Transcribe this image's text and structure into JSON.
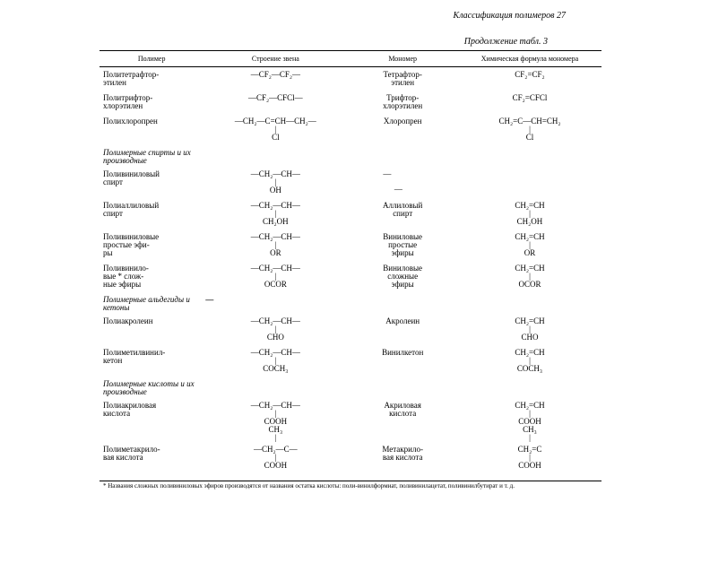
{
  "header": "Классификация полимеров  27",
  "continuation": "Продолжение табл. 3",
  "columns": {
    "polymer": "Полимер",
    "chain": "Строение звена",
    "monomer": "Мономер",
    "formula": "Химическая формула мономера"
  },
  "groups": {
    "alcohols": "Полимерные спирты и их производные",
    "aldehydes": "Полимерные альдегиды и кетоны",
    "acids": "Полимерные кислоты и их производные"
  },
  "rows": {
    "ptfe": {
      "polymer": "Политетрафтор-\nэтилен",
      "chain": "—CF₂—CF₂—",
      "monomer": "Тетрафтор-\nэтилен",
      "formula": "CF₂=CF₂"
    },
    "ptfce": {
      "polymer": "Политрифтор-\nхлорэтилен",
      "chain": "—CF₂—CFCl—",
      "monomer": "Трифтор-\nхлорэтилен",
      "formula": "CF₂=CFCl"
    },
    "pcp": {
      "polymer": "Полихлоропрен",
      "chain_top": "—CH₂—C=CH—CH₂—",
      "chain_mid": "|",
      "chain_bot": "Cl",
      "monomer": "Хлоропрен",
      "formula_top": "CH₂=C—CH=CH₂",
      "formula_mid": "|",
      "formula_bot": "Cl"
    },
    "pva_hidden": {
      "polymer": "Поливиниловый\nспирт",
      "chain_top": "—CH₂—CH—",
      "chain_mid": "|",
      "chain_bot": "OH",
      "monomer": "—",
      "formula": "—"
    },
    "pallyl": {
      "polymer": "Полиаллиловый\nспирт",
      "chain_top": "—CH₂—CH—",
      "chain_mid": "|",
      "chain_bot": "CH₂OH",
      "monomer": "Аллиловый\nспирт",
      "formula_top": "CH₂=CH",
      "formula_mid": "|",
      "formula_bot": "CH₂OH"
    },
    "pveth": {
      "polymer": "Поливиниловые\nпростые эфи-\nры",
      "chain_top": "—CH₂—CH—",
      "chain_mid": "|",
      "chain_bot": "OR",
      "monomer": "Виниловые\nпростые\nэфиры",
      "formula_top": "CH₂=CH",
      "formula_mid": "|",
      "formula_bot": "OR"
    },
    "pvest": {
      "polymer": "Поливинило-\nвые * слож-\nные эфиры",
      "chain_top": "—CH₂—CH—",
      "chain_mid": "|",
      "chain_bot": "OCOR",
      "monomer": "Виниловые\nсложные\nэфиры",
      "formula_top": "CH₂=CH",
      "formula_mid": "|",
      "formula_bot": "OCOR"
    },
    "pacr": {
      "polymer": "Полиакролеин",
      "chain_top": "—CH₂—CH—",
      "chain_mid": "|",
      "chain_bot": "CHO",
      "monomer": "Акролеин",
      "formula_top": "CH₂=CH",
      "formula_mid": "|",
      "formula_bot": "CHO"
    },
    "pmvk": {
      "polymer": "Полиметилвинил-\nкетон",
      "chain_top": "—CH₂—CH—",
      "chain_mid": "|",
      "chain_bot": "COCH₃",
      "monomer": "Винилкетон",
      "formula_top": "CH₂=CH",
      "formula_mid": "|",
      "formula_bot": "COCH₃"
    },
    "paa": {
      "polymer": "Полиакриловая\nкислота",
      "chain_top": "—CH₂—CH—",
      "chain_mid": "|",
      "chain_bot": "COOH",
      "chain_bot2_pre": "CH₃",
      "chain_bot2_mid": "|",
      "monomer": "Акриловая\nкислота",
      "formula_top": "CH₂=CH",
      "formula_mid": "|",
      "formula_bot": "COOH",
      "formula_bot2_pre": "CH₃",
      "formula_bot2_mid": "|"
    },
    "pmaa": {
      "polymer": "Полиметакрило-\nвая кислота",
      "chain_top": "—CH₂—C—",
      "chain_mid": "|",
      "chain_bot": "COOH",
      "monomer": "Метакрило-\nвая кислота",
      "formula_top": "CH₂=C",
      "formula_mid": "|",
      "formula_bot": "COOH"
    }
  },
  "footnote": "* Названия сложных поливиниловых эфиров производятся от названия остатка кислоты: поли-винилформиат, поливинилацетат, поливинилбутират и т. д."
}
